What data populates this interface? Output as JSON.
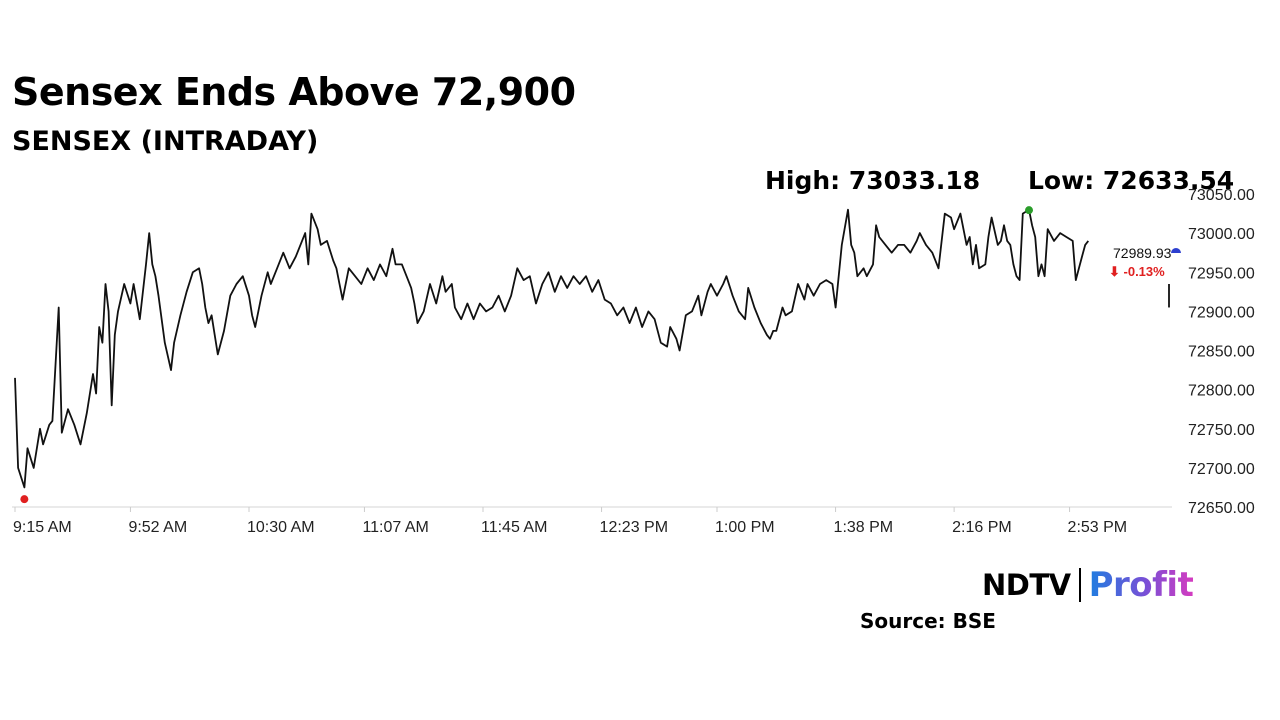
{
  "header": {
    "title": "Sensex Ends Above 72,900",
    "subtitle": "SENSEX (INTRADAY)"
  },
  "stats": {
    "high": "High: 73033.18",
    "low": "Low: 72633.54"
  },
  "last": {
    "value": "72989.93",
    "change": "⬇ -0.13%",
    "change_color": "#e02020"
  },
  "footer": {
    "source": "Source: BSE",
    "logo_text_1": "NDTV",
    "logo_text_2": "Profit"
  },
  "colors": {
    "line": "#111111",
    "low_marker": "#e02020",
    "high_marker": "#2a9d2a",
    "last_marker": "#2d3fcf",
    "axis_text": "#222222"
  },
  "chart_data": {
    "type": "line",
    "title": "SENSEX (INTRADAY)",
    "xlabel": "",
    "ylabel": "",
    "ylim": [
      72650,
      73050
    ],
    "xlim": [
      "9:15 AM",
      "3:30 PM"
    ],
    "x_ticks": [
      "9:15 AM",
      "9:52 AM",
      "10:30 AM",
      "11:07 AM",
      "11:45 AM",
      "12:23 PM",
      "1:00 PM",
      "1:38 PM",
      "2:16 PM",
      "2:53 PM"
    ],
    "y_ticks": [
      "73050.00",
      "73000.00",
      "72950.00",
      "72900.00",
      "72850.00",
      "72800.00",
      "72750.00",
      "72700.00",
      "72650.00"
    ],
    "grid": false,
    "legend": "none",
    "high": 73033.18,
    "low": 72633.54,
    "last": 72989.93,
    "change_pct": -0.13,
    "series": [
      {
        "points": [
          [
            "9:15 AM",
            72815
          ],
          [
            "9:16 AM",
            72700
          ],
          [
            "9:18 AM",
            72675
          ],
          [
            "9:19 AM",
            72725
          ],
          [
            "9:21 AM",
            72700
          ],
          [
            "9:23 AM",
            72750
          ],
          [
            "9:24 AM",
            72730
          ],
          [
            "9:26 AM",
            72755
          ],
          [
            "9:27 AM",
            72760
          ],
          [
            "9:29 AM",
            72905
          ],
          [
            "9:30 AM",
            72745
          ],
          [
            "9:32 AM",
            72775
          ],
          [
            "9:34 AM",
            72755
          ],
          [
            "9:36 AM",
            72730
          ],
          [
            "9:38 AM",
            72770
          ],
          [
            "9:40 AM",
            72820
          ],
          [
            "9:41 AM",
            72795
          ],
          [
            "9:42 AM",
            72880
          ],
          [
            "9:43 AM",
            72860
          ],
          [
            "9:44 AM",
            72935
          ],
          [
            "9:45 AM",
            72900
          ],
          [
            "9:46 AM",
            72780
          ],
          [
            "9:47 AM",
            72870
          ],
          [
            "9:48 AM",
            72900
          ],
          [
            "9:50 AM",
            72935
          ],
          [
            "9:52 AM",
            72910
          ],
          [
            "9:53 AM",
            72935
          ],
          [
            "9:55 AM",
            72890
          ],
          [
            "9:57 AM",
            72960
          ],
          [
            "9:58 AM",
            73000
          ],
          [
            "9:59 AM",
            72960
          ],
          [
            "10:00 AM",
            72945
          ],
          [
            "10:01 AM",
            72920
          ],
          [
            "10:03 AM",
            72860
          ],
          [
            "10:05 AM",
            72825
          ],
          [
            "10:06 AM",
            72860
          ],
          [
            "10:08 AM",
            72895
          ],
          [
            "10:10 AM",
            72925
          ],
          [
            "10:12 AM",
            72950
          ],
          [
            "10:14 AM",
            72955
          ],
          [
            "10:15 AM",
            72935
          ],
          [
            "10:16 AM",
            72905
          ],
          [
            "10:17 AM",
            72885
          ],
          [
            "10:18 AM",
            72895
          ],
          [
            "10:19 AM",
            72870
          ],
          [
            "10:20 AM",
            72845
          ],
          [
            "10:22 AM",
            72875
          ],
          [
            "10:24 AM",
            72920
          ],
          [
            "10:26 AM",
            72935
          ],
          [
            "10:28 AM",
            72945
          ],
          [
            "10:30 AM",
            72920
          ],
          [
            "10:31 AM",
            72895
          ],
          [
            "10:32 AM",
            72880
          ],
          [
            "10:34 AM",
            72920
          ],
          [
            "10:36 AM",
            72950
          ],
          [
            "10:37 AM",
            72935
          ],
          [
            "10:39 AM",
            72955
          ],
          [
            "10:41 AM",
            72975
          ],
          [
            "10:43 AM",
            72955
          ],
          [
            "10:45 AM",
            72970
          ],
          [
            "10:48 AM",
            73000
          ],
          [
            "10:49 AM",
            72960
          ],
          [
            "10:50 AM",
            73025
          ],
          [
            "10:52 AM",
            73005
          ],
          [
            "10:53 AM",
            72985
          ],
          [
            "10:55 AM",
            72990
          ],
          [
            "10:57 AM",
            72965
          ],
          [
            "10:58 AM",
            72955
          ],
          [
            "10:59 AM",
            72935
          ],
          [
            "11:00 AM",
            72915
          ],
          [
            "11:02 AM",
            72955
          ],
          [
            "11:04 AM",
            72945
          ],
          [
            "11:06 AM",
            72935
          ],
          [
            "11:08 AM",
            72955
          ],
          [
            "11:10 AM",
            72940
          ],
          [
            "11:12 AM",
            72960
          ],
          [
            "11:14 AM",
            72945
          ],
          [
            "11:16 AM",
            72980
          ],
          [
            "11:17 AM",
            72960
          ],
          [
            "11:19 AM",
            72960
          ],
          [
            "11:21 AM",
            72940
          ],
          [
            "11:22 AM",
            72930
          ],
          [
            "11:23 AM",
            72910
          ],
          [
            "11:24 AM",
            72885
          ],
          [
            "11:26 AM",
            72900
          ],
          [
            "11:28 AM",
            72935
          ],
          [
            "11:30 AM",
            72910
          ],
          [
            "11:32 AM",
            72945
          ],
          [
            "11:33 AM",
            72925
          ],
          [
            "11:35 AM",
            72935
          ],
          [
            "11:36 AM",
            72905
          ],
          [
            "11:38 AM",
            72890
          ],
          [
            "11:40 AM",
            72910
          ],
          [
            "11:42 AM",
            72890
          ],
          [
            "11:44 AM",
            72910
          ],
          [
            "11:46 AM",
            72900
          ],
          [
            "11:48 AM",
            72905
          ],
          [
            "11:50 AM",
            72920
          ],
          [
            "11:52 AM",
            72900
          ],
          [
            "11:54 AM",
            72920
          ],
          [
            "11:56 AM",
            72955
          ],
          [
            "11:58 AM",
            72940
          ],
          [
            "12:00 PM",
            72945
          ],
          [
            "12:02 PM",
            72910
          ],
          [
            "12:04 PM",
            72935
          ],
          [
            "12:06 PM",
            72950
          ],
          [
            "12:08 PM",
            72925
          ],
          [
            "12:10 PM",
            72945
          ],
          [
            "12:12 PM",
            72930
          ],
          [
            "12:14 PM",
            72945
          ],
          [
            "12:16 PM",
            72935
          ],
          [
            "12:18 PM",
            72945
          ],
          [
            "12:20 PM",
            72925
          ],
          [
            "12:22 PM",
            72940
          ],
          [
            "12:24 PM",
            72915
          ],
          [
            "12:26 PM",
            72910
          ],
          [
            "12:28 PM",
            72895
          ],
          [
            "12:30 PM",
            72905
          ],
          [
            "12:32 PM",
            72885
          ],
          [
            "12:34 PM",
            72905
          ],
          [
            "12:36 PM",
            72880
          ],
          [
            "12:38 PM",
            72900
          ],
          [
            "12:40 PM",
            72890
          ],
          [
            "12:42 PM",
            72860
          ],
          [
            "12:44 PM",
            72855
          ],
          [
            "12:45 PM",
            72880
          ],
          [
            "12:47 PM",
            72865
          ],
          [
            "12:48 PM",
            72850
          ],
          [
            "12:50 PM",
            72895
          ],
          [
            "12:52 PM",
            72900
          ],
          [
            "12:54 PM",
            72920
          ],
          [
            "12:55 PM",
            72895
          ],
          [
            "12:57 PM",
            72925
          ],
          [
            "12:58 PM",
            72935
          ],
          [
            "1:00 PM",
            72920
          ],
          [
            "1:02 PM",
            72935
          ],
          [
            "1:03 PM",
            72945
          ],
          [
            "1:05 PM",
            72920
          ],
          [
            "1:07 PM",
            72900
          ],
          [
            "1:09 PM",
            72890
          ],
          [
            "1:10 PM",
            72930
          ],
          [
            "1:12 PM",
            72905
          ],
          [
            "1:14 PM",
            72885
          ],
          [
            "1:16 PM",
            72870
          ],
          [
            "1:17 PM",
            72865
          ],
          [
            "1:18 PM",
            72875
          ],
          [
            "1:19 PM",
            72875
          ],
          [
            "1:21 PM",
            72905
          ],
          [
            "1:22 PM",
            72895
          ],
          [
            "1:24 PM",
            72900
          ],
          [
            "1:26 PM",
            72935
          ],
          [
            "1:28 PM",
            72915
          ],
          [
            "1:29 PM",
            72935
          ],
          [
            "1:31 PM",
            72920
          ],
          [
            "1:33 PM",
            72935
          ],
          [
            "1:35 PM",
            72940
          ],
          [
            "1:37 PM",
            72935
          ],
          [
            "1:38 PM",
            72905
          ],
          [
            "1:40 PM",
            72985
          ],
          [
            "1:42 PM",
            73030
          ],
          [
            "1:43 PM",
            72985
          ],
          [
            "1:44 PM",
            72975
          ],
          [
            "1:45 PM",
            72945
          ],
          [
            "1:47 PM",
            72955
          ],
          [
            "1:48 PM",
            72945
          ],
          [
            "1:50 PM",
            72960
          ],
          [
            "1:51 PM",
            73010
          ],
          [
            "1:52 PM",
            72995
          ],
          [
            "1:54 PM",
            72985
          ],
          [
            "1:56 PM",
            72975
          ],
          [
            "1:58 PM",
            72985
          ],
          [
            "2:00 PM",
            72985
          ],
          [
            "2:02 PM",
            72975
          ],
          [
            "2:04 PM",
            72990
          ],
          [
            "2:05 PM",
            73000
          ],
          [
            "2:07 PM",
            72985
          ],
          [
            "2:09 PM",
            72975
          ],
          [
            "2:11 PM",
            72955
          ],
          [
            "2:13 PM",
            73025
          ],
          [
            "2:15 PM",
            73020
          ],
          [
            "2:16 PM",
            73005
          ],
          [
            "2:18 PM",
            73025
          ],
          [
            "2:20 PM",
            72985
          ],
          [
            "2:21 PM",
            72995
          ],
          [
            "2:22 PM",
            72960
          ],
          [
            "2:23 PM",
            72985
          ],
          [
            "2:24 PM",
            72955
          ],
          [
            "2:26 PM",
            72960
          ],
          [
            "2:27 PM",
            72995
          ],
          [
            "2:28 PM",
            73020
          ],
          [
            "2:30 PM",
            72985
          ],
          [
            "2:31 PM",
            72990
          ],
          [
            "2:32 PM",
            73010
          ],
          [
            "2:33 PM",
            72990
          ],
          [
            "2:34 PM",
            72985
          ],
          [
            "2:35 PM",
            72960
          ],
          [
            "2:36 PM",
            72945
          ],
          [
            "2:37 PM",
            72940
          ],
          [
            "2:38 PM",
            73025
          ],
          [
            "2:40 PM",
            73030
          ],
          [
            "2:41 PM",
            73010
          ],
          [
            "2:42 PM",
            72995
          ],
          [
            "2:43 PM",
            72945
          ],
          [
            "2:44 PM",
            72960
          ],
          [
            "2:45 PM",
            72945
          ],
          [
            "2:46 PM",
            73005
          ],
          [
            "2:48 PM",
            72990
          ],
          [
            "2:50 PM",
            73000
          ],
          [
            "2:52 PM",
            72995
          ],
          [
            "2:54 PM",
            72990
          ],
          [
            "2:55 PM",
            72940
          ],
          [
            "2:56 PM",
            72955
          ],
          [
            "2:57 PM",
            72970
          ],
          [
            "2:58 PM",
            72985
          ],
          [
            "2:59 PM",
            72990
          ]
        ]
      }
    ]
  }
}
